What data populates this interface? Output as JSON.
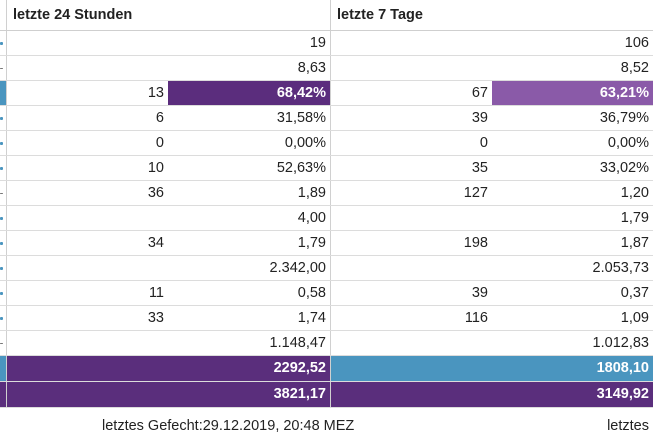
{
  "header": {
    "col_24h": "letzte 24 Stunden",
    "col_7d": "letzte 7 Tage"
  },
  "rows": [
    {
      "edge": "dot",
      "a": "",
      "b": "19",
      "c": "",
      "d": "106"
    },
    {
      "edge": "dash",
      "a": "",
      "b": "8,63",
      "c": "",
      "d": "8,52"
    },
    {
      "edge": "blue",
      "a": "13",
      "b": "68,42%",
      "c": "67",
      "d": "63,21%"
    },
    {
      "edge": "dot",
      "a": "6",
      "b": "31,58%",
      "c": "39",
      "d": "36,79%"
    },
    {
      "edge": "dot",
      "a": "0",
      "b": "0,00%",
      "c": "0",
      "d": "0,00%"
    },
    {
      "edge": "dot",
      "a": "10",
      "b": "52,63%",
      "c": "35",
      "d": "33,02%"
    },
    {
      "edge": "dash",
      "a": "36",
      "b": "1,89",
      "c": "127",
      "d": "1,20"
    },
    {
      "edge": "dot",
      "a": "",
      "b": "4,00",
      "c": "",
      "d": "1,79"
    },
    {
      "edge": "dot",
      "a": "34",
      "b": "1,79",
      "c": "198",
      "d": "1,87"
    },
    {
      "edge": "dot",
      "a": "",
      "b": "2.342,00",
      "c": "",
      "d": "2.053,73"
    },
    {
      "edge": "dot",
      "a": "11",
      "b": "0,58",
      "c": "39",
      "d": "0,37"
    },
    {
      "edge": "dot",
      "a": "33",
      "b": "1,74",
      "c": "116",
      "d": "1,09"
    },
    {
      "edge": "dash",
      "a": "",
      "b": "1.148,47",
      "c": "",
      "d": "1.012,83"
    }
  ],
  "totals": {
    "row1_24h": "2292,52",
    "row1_7d": "1808,10",
    "row2_24h": "3821,17",
    "row2_7d": "3149,92"
  },
  "footer": {
    "status": "letztes Gefecht:29.12.2019, 20:48 MEZ",
    "last": "letztes"
  },
  "colors": {
    "purple": "#5a2e7c",
    "purple_light": "#8a5aa8",
    "blue": "#4a95bf"
  }
}
